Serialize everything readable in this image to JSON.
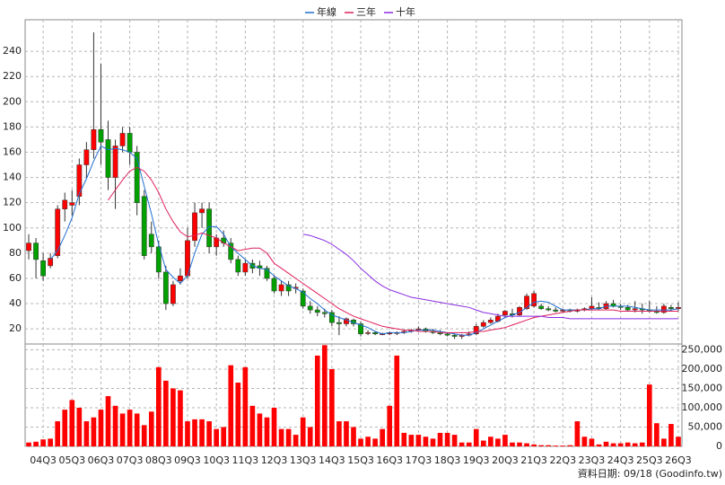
{
  "chart_data": {
    "type": "candlestick",
    "categories": [
      null,
      null,
      "04Q3",
      null,
      null,
      null,
      "05Q3",
      null,
      null,
      null,
      "06Q3",
      null,
      null,
      null,
      "07Q3",
      null,
      null,
      null,
      "08Q3",
      null,
      null,
      null,
      "09Q3",
      null,
      null,
      null,
      "10Q3",
      null,
      null,
      null,
      "11Q3",
      null,
      null,
      null,
      "12Q3",
      null,
      null,
      null,
      "13Q3",
      null,
      null,
      null,
      "14Q3",
      null,
      null,
      null,
      "15Q3",
      null,
      null,
      null,
      "16Q3",
      null,
      null,
      null,
      "17Q3",
      null,
      null,
      null,
      "18Q3",
      null,
      null,
      null,
      "19Q3",
      null,
      null,
      null,
      "20Q3",
      null,
      null,
      null,
      "21Q3",
      null,
      null,
      null,
      "22Q3",
      null,
      null,
      null,
      "23Q3",
      null,
      null,
      null,
      "24Q3",
      null,
      null,
      null,
      "25Q3",
      null,
      null,
      null,
      "26Q3"
    ],
    "open": [
      82,
      88,
      74,
      70,
      78,
      115,
      118,
      125,
      150,
      162,
      178,
      170,
      140,
      165,
      175,
      160,
      125,
      95,
      85,
      65,
      40,
      58,
      62,
      90,
      112,
      115,
      85,
      92,
      88,
      75,
      65,
      72,
      70,
      68,
      60,
      50,
      55,
      52,
      50,
      38,
      35,
      33,
      33,
      25,
      24,
      27,
      24,
      17,
      17,
      16,
      16,
      17,
      17,
      18,
      19,
      20,
      18,
      17,
      16,
      15,
      14,
      15,
      16,
      22,
      25,
      26,
      31,
      32,
      31,
      36,
      38,
      38,
      36,
      35,
      34,
      35,
      34,
      35,
      36,
      37,
      36,
      40,
      38,
      37,
      35,
      36,
      35,
      34,
      33,
      37,
      36
    ],
    "high": [
      95,
      92,
      80,
      80,
      118,
      128,
      130,
      155,
      168,
      255,
      230,
      185,
      170,
      180,
      180,
      165,
      130,
      105,
      90,
      70,
      58,
      68,
      100,
      120,
      120,
      120,
      95,
      98,
      92,
      78,
      75,
      75,
      74,
      70,
      62,
      58,
      58,
      56,
      52,
      42,
      38,
      36,
      35,
      30,
      29,
      28,
      26,
      19,
      18,
      17,
      18,
      18,
      19,
      20,
      22,
      21,
      20,
      19,
      17,
      16,
      16,
      18,
      24,
      27,
      29,
      32,
      35,
      36,
      38,
      48,
      50,
      40,
      38,
      37,
      36,
      36,
      36,
      37,
      45,
      41,
      42,
      43,
      40,
      39,
      42,
      40,
      42,
      38,
      40,
      39,
      41
    ],
    "low": [
      75,
      60,
      58,
      68,
      76,
      105,
      110,
      118,
      140,
      155,
      150,
      130,
      115,
      160,
      150,
      110,
      75,
      80,
      60,
      35,
      38,
      55,
      60,
      85,
      100,
      80,
      78,
      85,
      72,
      62,
      62,
      64,
      62,
      58,
      48,
      46,
      46,
      48,
      36,
      32,
      30,
      29,
      22,
      15,
      22,
      22,
      14,
      15,
      15,
      15,
      15,
      15,
      16,
      17,
      18,
      17,
      16,
      15,
      14,
      12,
      12,
      14,
      15,
      21,
      24,
      25,
      29,
      29,
      30,
      35,
      37,
      35,
      34,
      33,
      33,
      33,
      33,
      34,
      35,
      35,
      35,
      37,
      35,
      34,
      33,
      32,
      33,
      32,
      32,
      34,
      34
    ],
    "close": [
      88,
      75,
      62,
      76,
      115,
      122,
      120,
      150,
      162,
      178,
      168,
      140,
      165,
      175,
      160,
      120,
      78,
      85,
      65,
      40,
      55,
      62,
      90,
      112,
      115,
      85,
      92,
      88,
      75,
      65,
      72,
      68,
      68,
      60,
      50,
      55,
      50,
      53,
      38,
      35,
      33,
      32,
      25,
      24,
      28,
      24,
      16,
      17,
      16,
      16,
      17,
      17,
      18,
      19,
      20,
      18,
      17,
      16,
      15,
      14,
      15,
      16,
      22,
      25,
      27,
      30,
      34,
      31,
      37,
      46,
      48,
      36,
      35,
      34,
      35,
      34,
      35,
      36,
      38,
      36,
      40,
      38,
      37,
      35,
      36,
      35,
      34,
      33,
      38,
      36,
      37
    ],
    "up_color": "#ff0000",
    "down_color": "#00a000",
    "ylim": [
      8,
      265
    ],
    "yticks": [
      20,
      40,
      60,
      80,
      100,
      120,
      140,
      160,
      180,
      200,
      220,
      240
    ],
    "grid": true,
    "lines": [
      {
        "name": "年線",
        "color": "#1f6fd1",
        "values": [
          null,
          null,
          null,
          75,
          82,
          94,
          108,
          127,
          139,
          153,
          165,
          162,
          163,
          162,
          160,
          155,
          133,
          111,
          87,
          67,
          61,
          56,
          62,
          80,
          95,
          101,
          101,
          95,
          85,
          80,
          75,
          70,
          68,
          67,
          62,
          58,
          54,
          52,
          49,
          44,
          40,
          35,
          31,
          29,
          27,
          25,
          23,
          21,
          18,
          16,
          17,
          17,
          17,
          18,
          19,
          19,
          19,
          18,
          17,
          16,
          15,
          15,
          17,
          20,
          23,
          26,
          29,
          31,
          33,
          37,
          41,
          42,
          41,
          38,
          35,
          35,
          35,
          35,
          36,
          36,
          38,
          38,
          38,
          38,
          37,
          36,
          35,
          35,
          35,
          35,
          36
        ]
      },
      {
        "name": "三年",
        "color": "#e0205a",
        "values": [
          null,
          null,
          null,
          null,
          null,
          null,
          null,
          null,
          null,
          null,
          null,
          122,
          130,
          138,
          145,
          148,
          145,
          138,
          128,
          115,
          105,
          97,
          93,
          94,
          96,
          94,
          92,
          88,
          85,
          82,
          83,
          84,
          84,
          80,
          72,
          68,
          64,
          60,
          56,
          52,
          48,
          44,
          40,
          36,
          33,
          30,
          28,
          26,
          24,
          22,
          21,
          20,
          19,
          19,
          18,
          18,
          18,
          17,
          17,
          17,
          17,
          17,
          18,
          18,
          19,
          20,
          21,
          23,
          25,
          27,
          29,
          30,
          31,
          32,
          33,
          34,
          35,
          35,
          35,
          35,
          35,
          35,
          34,
          34,
          34,
          34,
          34,
          34,
          34,
          34,
          34
        ]
      },
      {
        "name": "十年",
        "color": "#8a2be2",
        "values": [
          null,
          null,
          null,
          null,
          null,
          null,
          null,
          null,
          null,
          null,
          null,
          null,
          null,
          null,
          null,
          null,
          null,
          null,
          null,
          null,
          null,
          null,
          null,
          null,
          null,
          null,
          null,
          null,
          null,
          null,
          null,
          null,
          null,
          null,
          null,
          null,
          null,
          null,
          95,
          94,
          92,
          90,
          87,
          83,
          79,
          74,
          68,
          63,
          58,
          54,
          51,
          49,
          47,
          45,
          44,
          43,
          42,
          41,
          40,
          39,
          38,
          37,
          35,
          33,
          32,
          31,
          30,
          30,
          30,
          30,
          30,
          30,
          29,
          29,
          29,
          28,
          28,
          28,
          28,
          28,
          28,
          28,
          28,
          28,
          28,
          28,
          28,
          28,
          28,
          28,
          28
        ]
      }
    ],
    "volume": {
      "color": "#ff0000",
      "values": [
        10000,
        12000,
        18000,
        20000,
        65000,
        95000,
        120000,
        100000,
        65000,
        75000,
        95000,
        130000,
        105000,
        85000,
        95000,
        85000,
        55000,
        90000,
        205000,
        170000,
        150000,
        145000,
        65000,
        70000,
        70000,
        65000,
        45000,
        50000,
        210000,
        165000,
        205000,
        105000,
        85000,
        75000,
        100000,
        45000,
        45000,
        30000,
        75000,
        50000,
        235000,
        262000,
        200000,
        65000,
        65000,
        50000,
        20000,
        25000,
        20000,
        45000,
        105000,
        235000,
        35000,
        30000,
        30000,
        25000,
        20000,
        35000,
        35000,
        30000,
        10000,
        10000,
        45000,
        15000,
        25000,
        20000,
        30000,
        10000,
        10000,
        8000,
        5000,
        3000,
        3000,
        2000,
        2000,
        3000,
        65000,
        25000,
        20000,
        5000,
        12000,
        8000,
        8000,
        10000,
        8000,
        10000,
        160000,
        60000,
        20000,
        58000,
        25000
      ],
      "ylim": [
        0,
        265000
      ],
      "yticks": [
        0,
        {
          "value": 50000,
          "label": "50,000"
        },
        {
          "value": 100000,
          "label": "100,000"
        },
        {
          "value": 150000,
          "label": "150,000"
        },
        {
          "value": 200000,
          "label": "200,000"
        },
        {
          "value": 250000,
          "label": "250,000"
        }
      ]
    },
    "source": "資料日期: 09/18 (Goodinfo.tw)"
  }
}
